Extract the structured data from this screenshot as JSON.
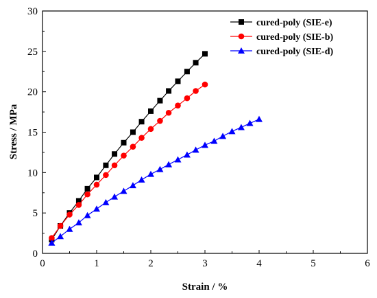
{
  "chart_data": {
    "type": "line",
    "xlabel": "Strain / %",
    "ylabel": "Stress / MPa",
    "xlim": [
      0,
      6
    ],
    "ylim": [
      0,
      30
    ],
    "xticks": [
      "0",
      "1",
      "2",
      "3",
      "4",
      "5",
      "6"
    ],
    "yticks": [
      "0",
      "5",
      "10",
      "15",
      "20",
      "25",
      "30"
    ],
    "grid": false,
    "legend_position": "top-right",
    "series": [
      {
        "name": "cured-poly (SIE-e)",
        "color": "#000000",
        "marker": "square",
        "x": [
          0.17,
          0.33,
          0.5,
          0.67,
          0.83,
          1.0,
          1.17,
          1.33,
          1.5,
          1.67,
          1.83,
          2.0,
          2.17,
          2.33,
          2.5,
          2.67,
          2.83,
          3.0
        ],
        "y": [
          1.7,
          3.4,
          5.0,
          6.5,
          8.0,
          9.4,
          10.9,
          12.3,
          13.7,
          15.0,
          16.3,
          17.6,
          18.9,
          20.1,
          21.3,
          22.5,
          23.6,
          24.7
        ]
      },
      {
        "name": "cured-poly (SIE-b)",
        "color": "#ff0000",
        "marker": "circle",
        "x": [
          0.17,
          0.33,
          0.5,
          0.67,
          0.83,
          1.0,
          1.17,
          1.33,
          1.5,
          1.67,
          1.83,
          2.0,
          2.17,
          2.33,
          2.5,
          2.67,
          2.83,
          3.0
        ],
        "y": [
          1.9,
          3.4,
          4.8,
          6.0,
          7.3,
          8.5,
          9.7,
          10.9,
          12.1,
          13.2,
          14.3,
          15.4,
          16.4,
          17.4,
          18.3,
          19.2,
          20.1,
          20.9
        ]
      },
      {
        "name": "cured-poly (SIE-d)",
        "color": "#0000ff",
        "marker": "triangle",
        "x": [
          0.17,
          0.33,
          0.5,
          0.67,
          0.83,
          1.0,
          1.17,
          1.33,
          1.5,
          1.67,
          1.83,
          2.0,
          2.17,
          2.33,
          2.5,
          2.67,
          2.83,
          3.0,
          3.17,
          3.33,
          3.5,
          3.67,
          3.83,
          4.0
        ],
        "y": [
          1.3,
          2.1,
          3.0,
          3.8,
          4.7,
          5.5,
          6.3,
          7.0,
          7.7,
          8.4,
          9.1,
          9.8,
          10.4,
          11.0,
          11.6,
          12.2,
          12.8,
          13.4,
          13.9,
          14.5,
          15.1,
          15.6,
          16.1,
          16.6
        ]
      }
    ]
  }
}
